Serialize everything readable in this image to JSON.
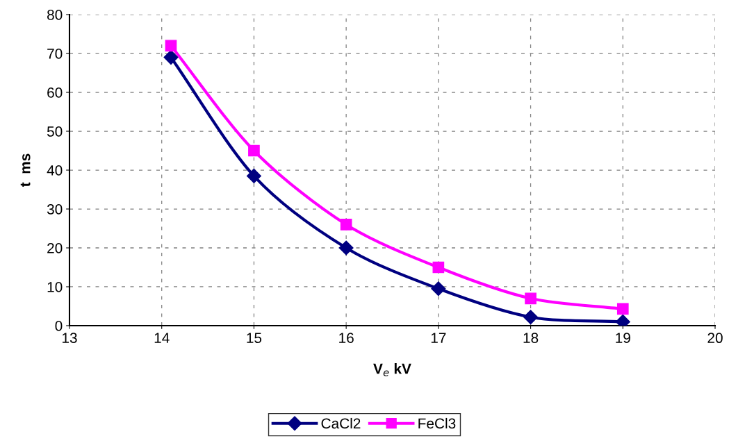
{
  "chart_data": {
    "type": "line",
    "xlabel": "V$_{e}$ kV",
    "ylabel": "t  ms",
    "series": [
      {
        "name": "CaCl2",
        "color": "#000080",
        "marker": "diamond",
        "x": [
          14.1,
          15,
          16,
          17,
          18,
          19
        ],
        "values": [
          69,
          38.5,
          20,
          9.5,
          2.2,
          1
        ]
      },
      {
        "name": "FeCl3",
        "color": "#ff00ff",
        "marker": "square",
        "x": [
          14.1,
          15,
          16,
          17,
          18,
          19
        ],
        "values": [
          72,
          45,
          26,
          15,
          7,
          4.3
        ]
      }
    ],
    "xlim": [
      13,
      20
    ],
    "xticks": [
      13,
      14,
      15,
      16,
      17,
      18,
      19,
      20
    ],
    "ylim": [
      0,
      80
    ],
    "yticks": [
      0,
      10,
      20,
      30,
      40,
      50,
      60,
      70,
      80
    ],
    "grid": true,
    "legend": "bottom",
    "line_style": "solid"
  }
}
